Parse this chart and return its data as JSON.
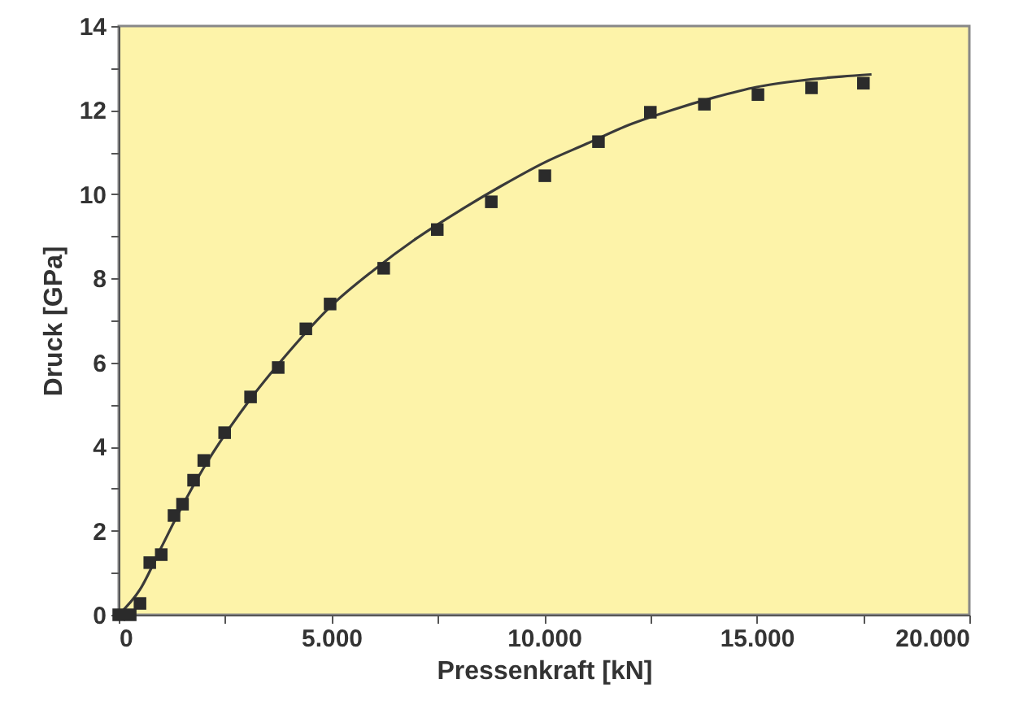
{
  "chart_data": {
    "type": "scatter",
    "xlabel": "Pressenkraft [kN]",
    "ylabel": "Druck [GPa]",
    "xlim": [
      0,
      20000
    ],
    "ylim": [
      0,
      14
    ],
    "xticks": [
      0,
      {
        "value": 2500,
        "label": null
      },
      {
        "value": 5000,
        "label": "5.000"
      },
      {
        "value": 7500,
        "label": null
      },
      {
        "value": 10000,
        "label": "10.000"
      },
      {
        "value": 12500,
        "label": null
      },
      {
        "value": 15000,
        "label": "15.000"
      },
      {
        "value": 17500,
        "label": null
      },
      {
        "value": 20000,
        "label": "20.000"
      }
    ],
    "yticks": [
      0,
      {
        "value": 1,
        "label": null
      },
      2,
      {
        "value": 3,
        "label": null
      },
      4,
      {
        "value": 5,
        "label": null
      },
      6,
      {
        "value": 7,
        "label": null
      },
      8,
      {
        "value": 9,
        "label": null
      },
      10,
      {
        "value": 11,
        "label": null
      },
      12,
      {
        "value": 13,
        "label": null
      },
      14
    ],
    "grid": false,
    "marker": "square",
    "series": [
      {
        "color": "#2b2b2b",
        "x": [
          0,
          270,
          500,
          730,
          1000,
          1300,
          1500,
          1760,
          2000,
          2490,
          3100,
          3750,
          4400,
          4970,
          6230,
          7490,
          8760,
          10020,
          11280,
          12500,
          13770,
          15030,
          16290,
          17510
        ],
        "values": [
          0,
          0,
          0.27,
          1.24,
          1.43,
          2.36,
          2.63,
          3.2,
          3.67,
          4.33,
          5.18,
          5.88,
          6.8,
          7.39,
          8.24,
          9.16,
          9.82,
          10.44,
          11.25,
          11.95,
          12.14,
          12.37,
          12.53,
          12.64
        ]
      },
      {
        "type": "line",
        "color": "#3a3a3a",
        "line_style": "solid",
        "marker": "none",
        "x": [
          0,
          500,
          1000,
          1500,
          2000,
          3000,
          4000,
          5000,
          6000,
          7000,
          8000,
          9000,
          10000,
          11000,
          12000,
          13000,
          14000,
          15000,
          16000,
          17000,
          17700
        ],
        "values": [
          0,
          0.6,
          1.6,
          2.6,
          3.5,
          5.0,
          6.25,
          7.35,
          8.2,
          8.95,
          9.6,
          10.2,
          10.75,
          11.2,
          11.65,
          12.0,
          12.3,
          12.55,
          12.7,
          12.8,
          12.85
        ]
      }
    ]
  }
}
